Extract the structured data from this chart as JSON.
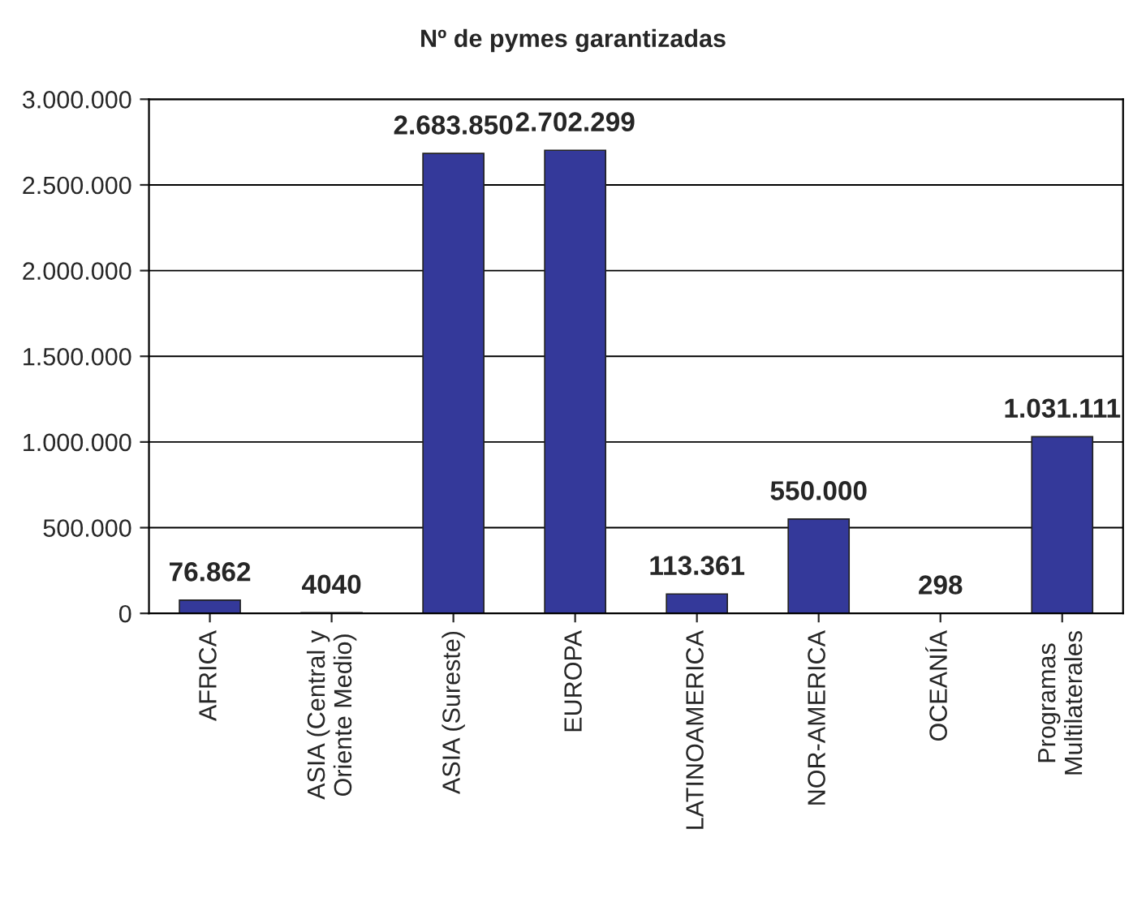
{
  "chart_data": {
    "type": "bar",
    "title": "Nº de pymes garantizadas",
    "categories": [
      "AFRICA",
      "ASIA (Central y\nOriente Medio)",
      "ASIA (Sureste)",
      "EUROPA",
      "LATINOAMERICA",
      "NOR-AMERICA",
      "OCEANÍA",
      "Programas\nMultilaterales"
    ],
    "values": [
      76862,
      4040,
      2683850,
      2702299,
      113361,
      550000,
      298,
      1031111
    ],
    "value_labels": [
      "76.862",
      "4040",
      "2.683.850",
      "2.702.299",
      "113.361",
      "550.000",
      "298",
      "1.031.111"
    ],
    "color": "#34399a",
    "ylim": [
      0,
      3000000
    ],
    "yticks": [
      {
        "value": 0,
        "label": "0"
      },
      {
        "value": 500000,
        "label": "500.000"
      },
      {
        "value": 1000000,
        "label": "1.000.000"
      },
      {
        "value": 1500000,
        "label": "1.500.000"
      },
      {
        "value": 2000000,
        "label": "2.000.000"
      },
      {
        "value": 2500000,
        "label": "2.500.000"
      },
      {
        "value": 3000000,
        "label": "3.000.000"
      }
    ],
    "grid": "y",
    "legend": false
  }
}
